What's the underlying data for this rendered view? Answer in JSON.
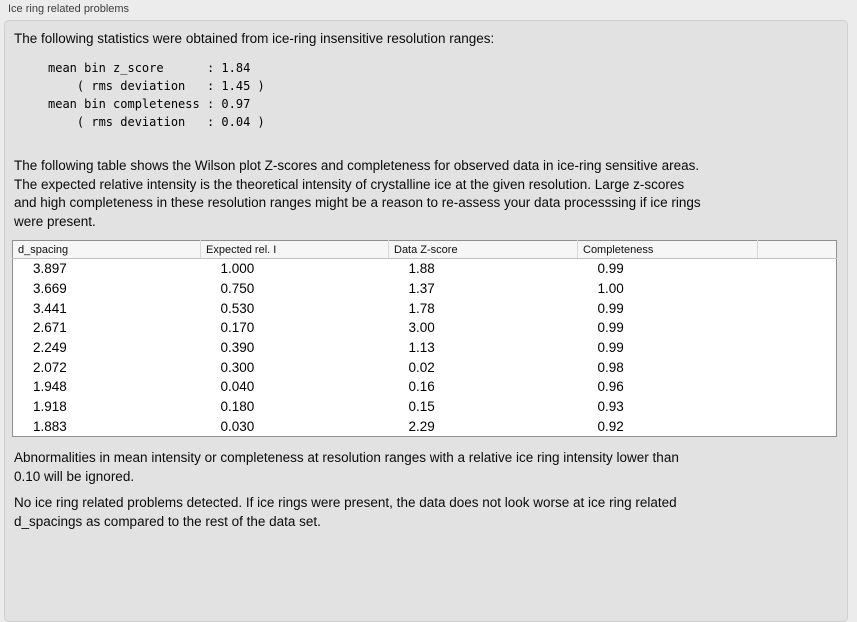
{
  "panel": {
    "title": "Ice ring related problems"
  },
  "intro": {
    "text": "The following statistics were obtained from ice-ring insensitive resolution ranges:"
  },
  "stats": {
    "mean_bin_z_score": "1.84",
    "z_score_rms_deviation": "1.45",
    "mean_bin_completeness": "0.97",
    "completeness_rms_deviation": "0.04",
    "formatted_block": "mean bin z_score      : 1.84\n    ( rms deviation   : 1.45 )\nmean bin completeness : 0.97\n    ( rms deviation   : 0.04 )"
  },
  "description": {
    "text": "The following table shows the Wilson plot Z-scores and completeness for observed data in ice-ring sensitive areas.\nThe expected relative intensity is the theoretical intensity of crystalline ice at the given resolution. Large z-scores\nand high completeness in these resolution ranges might be a reason to re-assess your data processsing if ice rings\nwere present."
  },
  "table": {
    "columns": [
      "d_spacing",
      "Expected rel. I",
      "Data Z-score",
      "Completeness",
      ""
    ],
    "rows": [
      [
        "3.897",
        "1.000",
        "1.88",
        "0.99"
      ],
      [
        "3.669",
        "0.750",
        "1.37",
        "1.00"
      ],
      [
        "3.441",
        "0.530",
        "1.78",
        "0.99"
      ],
      [
        "2.671",
        "0.170",
        "3.00",
        "0.99"
      ],
      [
        "2.249",
        "0.390",
        "1.13",
        "0.99"
      ],
      [
        "2.072",
        "0.300",
        "0.02",
        "0.98"
      ],
      [
        "1.948",
        "0.040",
        "0.16",
        "0.96"
      ],
      [
        "1.918",
        "0.180",
        "0.15",
        "0.93"
      ],
      [
        "1.883",
        "0.030",
        "2.29",
        "0.92"
      ]
    ]
  },
  "footer": {
    "ignore_note": "Abnormalities in mean intensity or completeness at resolution ranges with a relative ice ring intensity lower than\n0.10 will be ignored.",
    "conclusion": "No ice ring related problems detected. If ice rings were present, the data does not look worse at ice ring related\nd_spacings as compared to the rest of the data set."
  }
}
